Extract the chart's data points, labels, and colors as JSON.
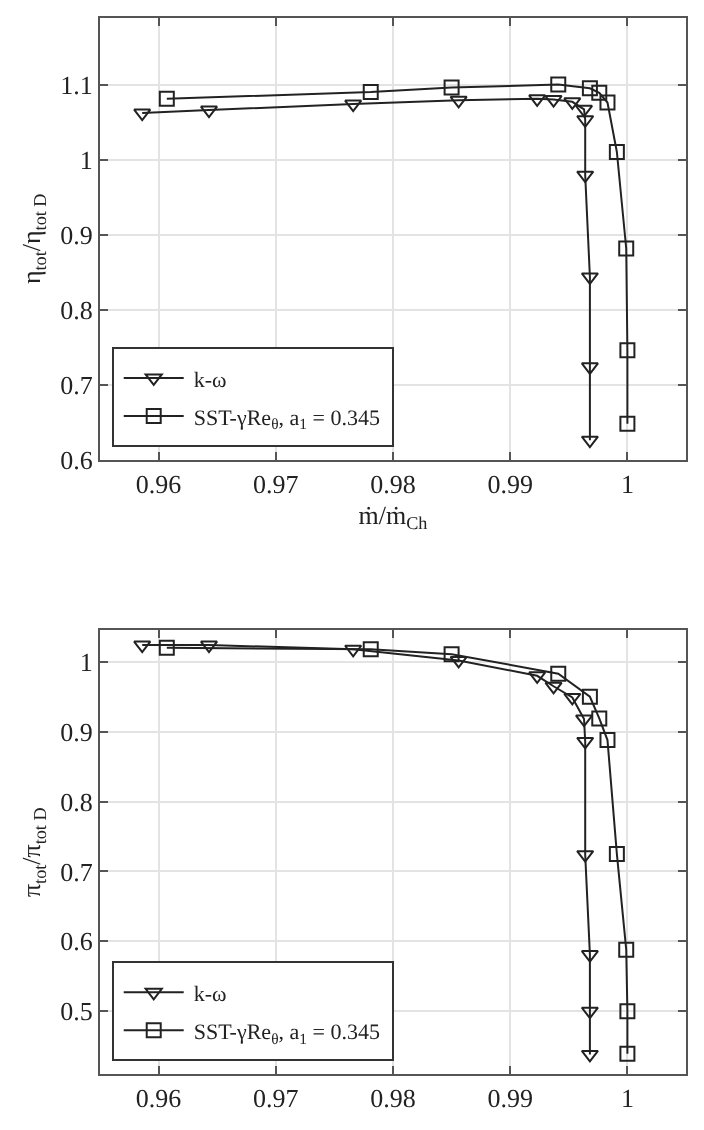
{
  "chart_data": [
    {
      "type": "line",
      "xlabel": "ṁ/ṁ$_{Ch}$",
      "ylabel": "η$_{tot}$/η$_{tot D}$",
      "xlim": [
        0.955,
        1.005
      ],
      "ylim": [
        0.6,
        1.19
      ],
      "xticks": [
        0.96,
        0.97,
        0.98,
        0.99,
        1
      ],
      "yticks": [
        0.6,
        0.7,
        0.8,
        0.9,
        1,
        1.1
      ],
      "grid": true,
      "legend": "bottom left",
      "line_style": "solid",
      "series": [
        {
          "name": "k-ω",
          "color": "#222222",
          "marker": "triangle",
          "x": [
            0.9586,
            0.9643,
            0.9766,
            0.9856,
            0.9923,
            0.9937,
            0.9953,
            0.9963,
            0.9964,
            0.9964,
            0.9968,
            0.9968,
            0.9968
          ],
          "values": [
            1.063,
            1.067,
            1.075,
            1.08,
            1.082,
            1.081,
            1.078,
            1.068,
            1.054,
            0.98,
            0.844,
            0.724,
            0.626
          ]
        },
        {
          "name": "SST-γRe$_{θ}$, a$_{1}$ = 0.345",
          "color": "#222222",
          "marker": "square",
          "x": [
            0.9607,
            0.9781,
            0.985,
            0.9941,
            0.9968,
            0.9976,
            0.9983,
            0.9991,
            0.9999,
            1.0,
            1.0
          ],
          "values": [
            1.082,
            1.091,
            1.097,
            1.101,
            1.096,
            1.09,
            1.077,
            1.011,
            0.882,
            0.746,
            0.648
          ]
        }
      ]
    },
    {
      "type": "line",
      "ylabel": "π$_{tot}$/π$_{tot D}$",
      "xlim": [
        0.955,
        1.005
      ],
      "ylim": [
        0.41,
        1.045
      ],
      "xticks": [
        0.96,
        0.97,
        0.98,
        0.99,
        1
      ],
      "yticks": [
        0.5,
        0.6,
        0.7,
        0.8,
        0.9,
        1
      ],
      "grid": true,
      "legend": "bottom left",
      "line_style": "solid",
      "series": [
        {
          "name": "k-ω",
          "color": "#222222",
          "marker": "triangle",
          "x": [
            0.9586,
            0.9643,
            0.9766,
            0.9856,
            0.9923,
            0.9937,
            0.9953,
            0.9963,
            0.9964,
            0.9964,
            0.9968,
            0.9968,
            0.9968
          ],
          "values": [
            1.024,
            1.024,
            1.018,
            1.002,
            0.98,
            0.965,
            0.949,
            0.918,
            0.886,
            0.724,
            0.581,
            0.5,
            0.438
          ]
        },
        {
          "name": "SST-γRe$_{θ}$, a$_{1}$ = 0.345",
          "color": "#222222",
          "marker": "square",
          "x": [
            0.9607,
            0.9781,
            0.985,
            0.9941,
            0.9968,
            0.9976,
            0.9983,
            0.9991,
            0.9999,
            1.0,
            1.0
          ],
          "values": [
            1.02,
            1.018,
            1.011,
            0.983,
            0.95,
            0.919,
            0.888,
            0.725,
            0.588,
            0.5,
            0.439
          ]
        }
      ]
    }
  ]
}
